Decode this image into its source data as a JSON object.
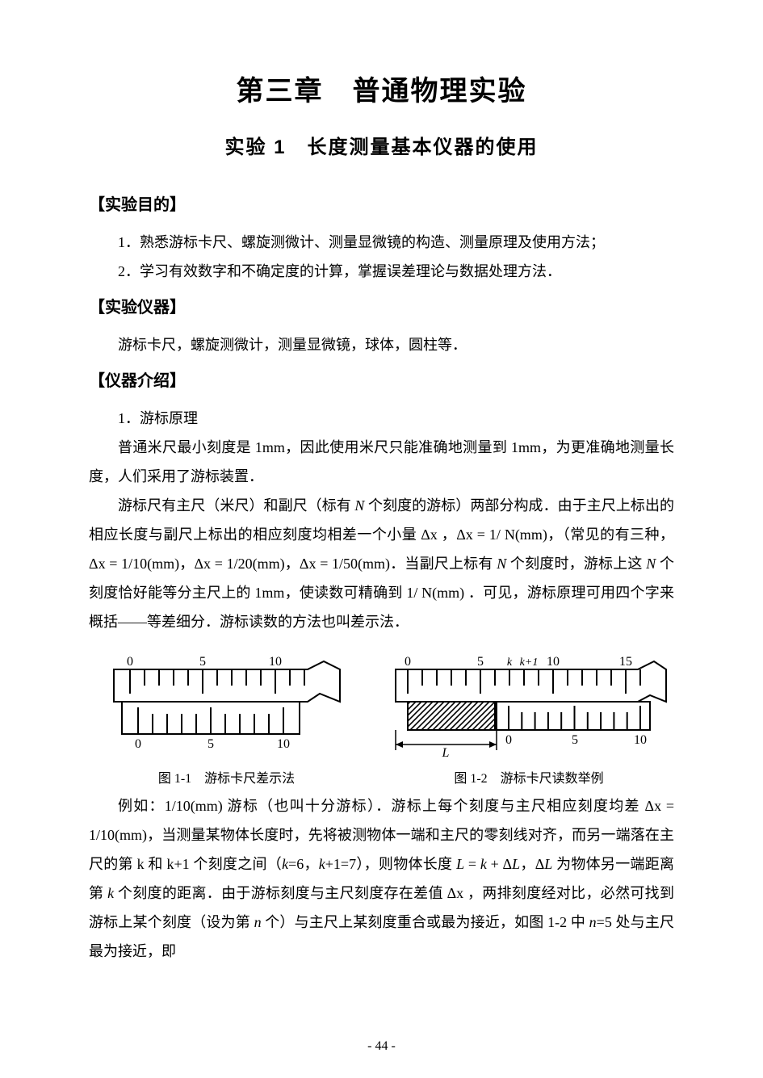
{
  "chapter_title": "第三章　普通物理实验",
  "experiment_title": "实验 1　长度测量基本仪器的使用",
  "sections": {
    "objective": {
      "heading": "【实验目的】",
      "items": [
        "1．熟悉游标卡尺、螺旋测微计、测量显微镜的构造、测量原理及使用方法；",
        "2．学习有效数字和不确定度的计算，掌握误差理论与数据处理方法．"
      ]
    },
    "apparatus": {
      "heading": "【实验仪器】",
      "text": "游标卡尺，螺旋测微计，测量显微镜，球体，圆柱等．"
    },
    "introduction": {
      "heading": "【仪器介绍】",
      "subheading": "1．游标原理",
      "para1": "普通米尺最小刻度是 1mm，因此使用米尺只能准确地测量到 1mm，为更准确地测量长度，人们采用了游标装置．",
      "para2_a": "游标尺有主尺（米尺）和副尺（标有 ",
      "para2_b": " 个刻度的游标）两部分构成．由于主尺上标出的相应长度与副尺上标出的相应刻度均相差一个小量 Δx ，Δx = 1/ N(mm)，（常见的有三种，Δx = 1/10(mm)，Δx = 1/20(mm)，Δx = 1/50(mm)．当副尺上标有 ",
      "para2_c": " 个刻度时，游标上这 ",
      "para2_d": " 个刻度恰好能等分主尺上的 1mm，使读数可精确到 1/ N(mm) ．可见，游标原理可用四个字来概括——等差细分．游标读数的方法也叫差示法．",
      "para3_a": "例如：1/10(mm) 游标（也叫十分游标）．游标上每个刻度与主尺相应刻度均差 Δx = 1/10(mm)，当测量某物体长度时，先将被测物体一端和主尺的零刻线对齐，而另一端落在主尺的第 k 和 k+1 个刻度之间（",
      "para3_b": "=6，",
      "para3_c": "+1=7），则物体长度 ",
      "para3_d": " = ",
      "para3_e": " + Δ",
      "para3_f": "，Δ",
      "para3_g": " 为物体另一端距离第 ",
      "para3_h": " 个刻度的距离．由于游标刻度与主尺刻度存在差值 Δx ，两排刻度经对比，必然可找到游标上某个刻度（设为第 ",
      "para3_i": " 个）与主尺上某刻度重合或最为接近，如图 1-2 中 ",
      "para3_j": "=5 处与主尺最为接近，即"
    }
  },
  "figures": {
    "fig1": {
      "caption": "图 1-1　游标卡尺差示法",
      "main_labels": [
        "0",
        "5",
        "10"
      ],
      "vernier_labels": [
        "0",
        "5",
        "10"
      ],
      "main_tick_count": 13,
      "vernier_tick_count": 11,
      "stroke_color": "#000000",
      "stroke_width": 2
    },
    "fig2": {
      "caption": "图 1-2　游标卡尺读数举例",
      "main_labels": [
        "0",
        "5",
        "10",
        "15"
      ],
      "vernier_labels": [
        "0",
        "5",
        "10"
      ],
      "k_label": "k",
      "k1_label": "k+1",
      "L_label": "L",
      "main_tick_count": 17,
      "vernier_tick_count": 11,
      "stroke_color": "#000000",
      "stroke_width": 2,
      "hatch_color": "#000000"
    }
  },
  "symbols": {
    "N": "N",
    "k": "k",
    "L": "L",
    "n": "n"
  },
  "page_number": "- 44 -",
  "colors": {
    "background": "#ffffff",
    "text": "#000000"
  },
  "fonts": {
    "heading_family": "SimHei",
    "body_family": "SimSun",
    "chapter_size": 34,
    "experiment_size": 24,
    "section_size": 20,
    "body_size": 18,
    "caption_size": 16
  }
}
